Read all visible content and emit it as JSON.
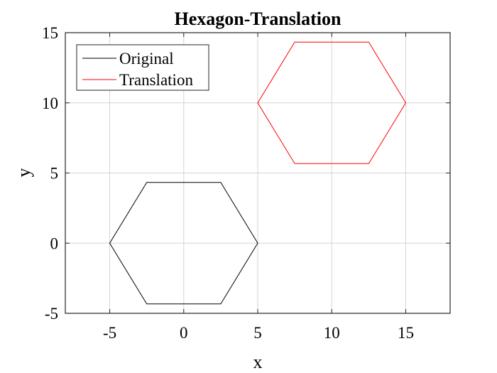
{
  "chart_data": {
    "type": "line",
    "title": "Hexagon-Translation",
    "xlabel": "x",
    "ylabel": "y",
    "xlim": [
      -8,
      18
    ],
    "ylim": [
      -5,
      15
    ],
    "xticks": [
      -5,
      0,
      5,
      10,
      15
    ],
    "yticks": [
      -5,
      0,
      5,
      10,
      15
    ],
    "grid": true,
    "legend_position": "top-left",
    "series": [
      {
        "name": "Original",
        "color": "#000000",
        "x": [
          5,
          2.5,
          -2.5,
          -5,
          -2.5,
          2.5,
          5
        ],
        "y": [
          0,
          4.33,
          4.33,
          0,
          -4.33,
          -4.33,
          0
        ]
      },
      {
        "name": "Translation",
        "color": "#ff0000",
        "x": [
          15,
          12.5,
          7.5,
          5,
          7.5,
          12.5,
          15
        ],
        "y": [
          10,
          14.33,
          14.33,
          10,
          5.67,
          5.67,
          10
        ]
      }
    ]
  }
}
